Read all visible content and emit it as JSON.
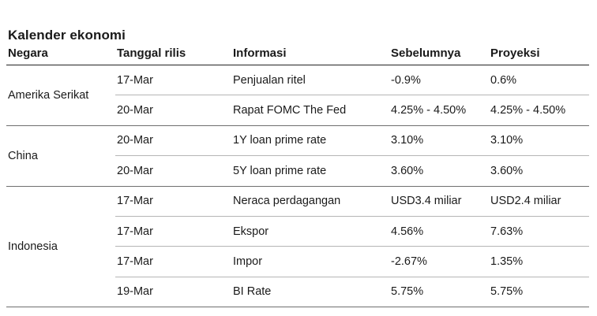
{
  "title": "Kalender ekonomi",
  "headers": [
    "Negara",
    "Tanggal rilis",
    "Informasi",
    "Sebelumnya",
    "Proyeksi"
  ],
  "groups": [
    {
      "country": "Amerika Serikat",
      "rows": [
        {
          "date": "17-Mar",
          "info": "Penjualan ritel",
          "previous": "-0.9%",
          "projection": "0.6%"
        },
        {
          "date": "20-Mar",
          "info": "Rapat FOMC The Fed",
          "previous": "4.25% - 4.50%",
          "projection": "4.25% - 4.50%"
        }
      ]
    },
    {
      "country": "China",
      "rows": [
        {
          "date": "20-Mar",
          "info": "1Y loan prime rate",
          "previous": "3.10%",
          "projection": "3.10%"
        },
        {
          "date": "20-Mar",
          "info": "5Y loan prime rate",
          "previous": "3.60%",
          "projection": "3.60%"
        }
      ]
    },
    {
      "country": "Indonesia",
      "rows": [
        {
          "date": "17-Mar",
          "info": "Neraca perdagangan",
          "previous": "USD3.4 miliar",
          "projection": "USD2.4 miliar"
        },
        {
          "date": "17-Mar",
          "info": "Ekspor",
          "previous": "4.56%",
          "projection": "7.63%"
        },
        {
          "date": "17-Mar",
          "info": "Impor",
          "previous": "-2.67%",
          "projection": "1.35%"
        },
        {
          "date": "19-Mar",
          "info": "BI Rate",
          "previous": "5.75%",
          "projection": "5.75%"
        }
      ]
    }
  ]
}
